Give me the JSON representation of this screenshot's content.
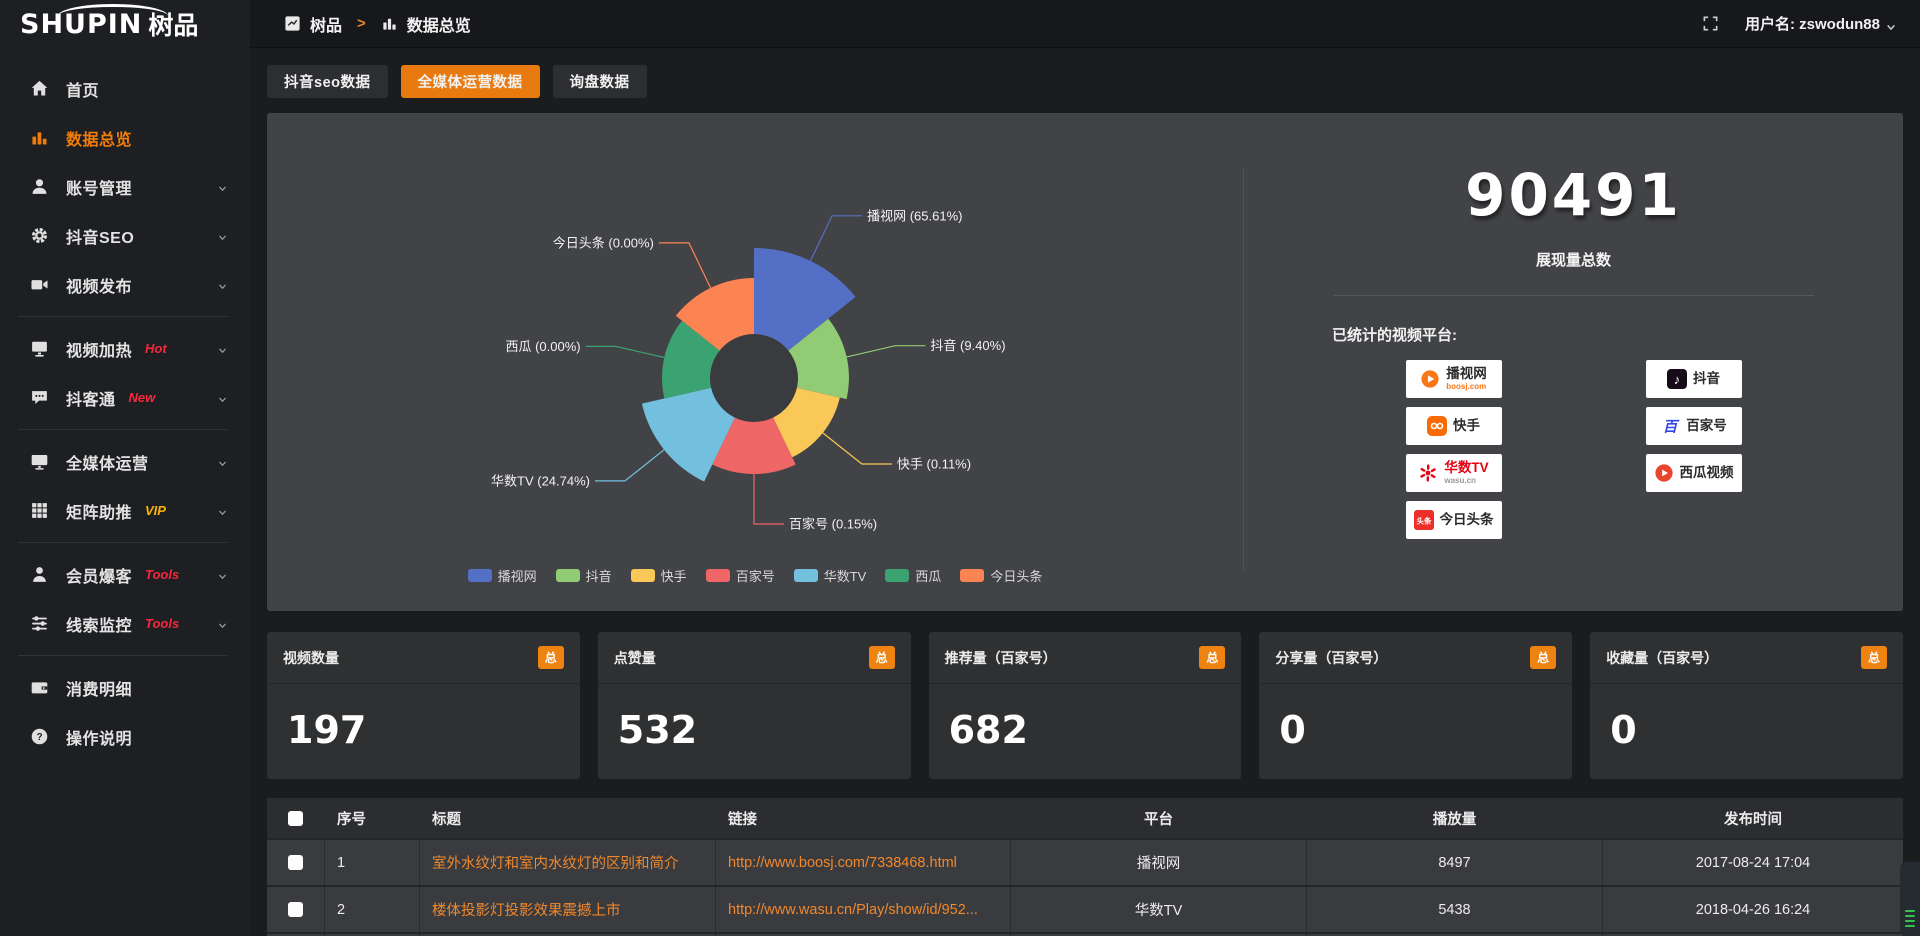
{
  "brand": {
    "logo_main": "SHUPIN",
    "logo_cn": "树品"
  },
  "topbar": {
    "breadcrumb_root": "树品",
    "breadcrumb_sep": ">",
    "breadcrumb_current": "数据总览",
    "username": "用户名: zswodun88"
  },
  "sidebar": {
    "items": [
      {
        "label": "首页",
        "icon": "home-icon",
        "chevron": false,
        "badge": "",
        "active": false,
        "divider_after": false
      },
      {
        "label": "数据总览",
        "icon": "bar-chart-icon",
        "chevron": false,
        "badge": "",
        "active": true,
        "divider_after": false
      },
      {
        "label": "账号管理",
        "icon": "user-icon",
        "chevron": true,
        "badge": "",
        "active": false,
        "divider_after": false
      },
      {
        "label": "抖音SEO",
        "icon": "gear-icon",
        "chevron": true,
        "badge": "",
        "active": false,
        "divider_after": false
      },
      {
        "label": "视频发布",
        "icon": "video-icon",
        "chevron": true,
        "badge": "",
        "active": false,
        "divider_after": true
      },
      {
        "label": "视频加热",
        "icon": "screen-icon",
        "chevron": true,
        "badge": "Hot",
        "badge_color": "#f5283d",
        "active": false,
        "divider_after": false
      },
      {
        "label": "抖客通",
        "icon": "chat-icon",
        "chevron": true,
        "badge": "New",
        "badge_color": "#f5283d",
        "active": false,
        "divider_after": true
      },
      {
        "label": "全媒体运营",
        "icon": "monitor-icon",
        "chevron": true,
        "badge": "",
        "active": false,
        "divider_after": false
      },
      {
        "label": "矩阵助推",
        "icon": "grid-icon",
        "chevron": true,
        "badge": "VIP",
        "badge_color": "#f7b500",
        "active": false,
        "divider_after": true
      },
      {
        "label": "会员爆客",
        "icon": "member-icon",
        "chevron": true,
        "badge": "Tools",
        "badge_color": "#f5283d",
        "active": false,
        "divider_after": false
      },
      {
        "label": "线索监控",
        "icon": "sliders-icon",
        "chevron": true,
        "badge": "Tools",
        "badge_color": "#f5283d",
        "active": false,
        "divider_after": true
      },
      {
        "label": "消费明细",
        "icon": "wallet-icon",
        "chevron": false,
        "badge": "",
        "active": false,
        "divider_after": false
      },
      {
        "label": "操作说明",
        "icon": "help-icon",
        "chevron": false,
        "badge": "",
        "active": false,
        "divider_after": false
      }
    ]
  },
  "tabs": [
    {
      "label": "抖音seo数据",
      "active": false
    },
    {
      "label": "全媒体运营数据",
      "active": true
    },
    {
      "label": "询盘数据",
      "active": false
    }
  ],
  "chart_data": {
    "type": "pie",
    "variant": "nightingale-rose",
    "categories": [
      "播视网",
      "抖音",
      "快手",
      "百家号",
      "华数TV",
      "西瓜",
      "今日头条"
    ],
    "values_percent": [
      65.61,
      9.4,
      0.11,
      0.15,
      24.74,
      0.0,
      0.0
    ],
    "labels": [
      "播视网 (65.61%)",
      "抖音 (9.40%)",
      "快手 (0.11%)",
      "百家号 (0.15%)",
      "华数TV (24.74%)",
      "西瓜 (0.00%)",
      "今日头条 (0.00%)"
    ],
    "colors": [
      "#5470c6",
      "#91cc75",
      "#fac858",
      "#ee6666",
      "#73c0de",
      "#3ba272",
      "#fc8452"
    ],
    "legend_position": "bottom",
    "equal_angles": true,
    "display_radii": [
      130,
      95,
      88,
      96,
      115,
      92,
      100
    ],
    "inner_radius": 44,
    "hole_color": "#3a3b3e"
  },
  "summary": {
    "total_value": "90491",
    "total_label": "展现量总数",
    "platforms_title": "已统计的视频平台:",
    "platforms_left": [
      {
        "name": "播视网",
        "sub": "boosj.com",
        "sub_color": "#f97714",
        "icon": "boosj-icon"
      },
      {
        "name": "快手",
        "sub": "",
        "icon": "kuaishou-icon"
      },
      {
        "name": "华数TV",
        "sub": "wasu.cn",
        "sub_color": "#999999",
        "name_color": "#e60012",
        "icon": "wasu-icon"
      },
      {
        "name": "今日头条",
        "sub": "",
        "icon": "toutiao-icon"
      }
    ],
    "platforms_right": [
      {
        "name": "抖音",
        "sub": "",
        "icon": "douyin-icon"
      },
      {
        "name": "百家号",
        "sub": "",
        "icon": "baijiahao-icon"
      },
      {
        "name": "西瓜视频",
        "sub": "",
        "icon": "xigua-icon"
      }
    ]
  },
  "stat_cards": [
    {
      "label": "视频数量",
      "badge": "总",
      "value": "197"
    },
    {
      "label": "点赞量",
      "badge": "总",
      "value": "532"
    },
    {
      "label": "推荐量（百家号）",
      "badge": "总",
      "value": "682"
    },
    {
      "label": "分享量（百家号）",
      "badge": "总",
      "value": "0"
    },
    {
      "label": "收藏量（百家号）",
      "badge": "总",
      "value": "0"
    }
  ],
  "table": {
    "columns": [
      "序号",
      "标题",
      "链接",
      "平台",
      "播放量",
      "发布时间"
    ],
    "rows": [
      {
        "no": "1",
        "title": "室外水纹灯和室内水纹灯的区别和简介",
        "link": "http://www.boosj.com/7338468.html",
        "platform": "播视网",
        "plays": "8497",
        "time": "2017-08-24 17:04"
      },
      {
        "no": "2",
        "title": "楼体投影灯投影效果震撼上市",
        "link": "http://www.wasu.cn/Play/show/id/952...",
        "platform": "华数TV",
        "plays": "5438",
        "time": "2018-04-26 16:24"
      }
    ]
  },
  "colors": {
    "accent": "#e97a10",
    "link": "#f0882d",
    "badge": "#ef8312"
  }
}
